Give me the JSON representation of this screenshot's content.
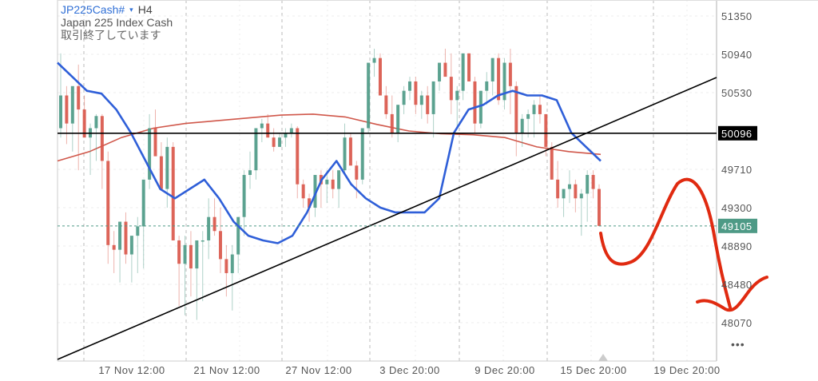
{
  "header": {
    "symbol": "JP225Cash#",
    "caret": "▾",
    "timeframe": "H4",
    "instrument_name": "Japan 225 Index Cash",
    "market_status": "取引終了しています"
  },
  "colors": {
    "bull": "#4e9a86",
    "bear": "#d9574a",
    "ma_fast": "#2f5fd8",
    "ma_slow": "#d0574a",
    "horizontal_line": "#000000",
    "trend_line": "#000000",
    "drawing": "#e02a10",
    "current_price_bg": "#4e9a86",
    "hline_label_bg": "#000000",
    "grid": "#cccccc"
  },
  "more_menu": {
    "icon": "more-horizontal-icon",
    "label": "•••"
  },
  "chart_data": {
    "type": "candlestick",
    "title": "JP225Cash# H4 - Japan 225 Index Cash",
    "xlabel": "",
    "ylabel": "",
    "ylim": [
      47700,
      51550
    ],
    "y_ticks": [
      51350,
      50940,
      50530,
      49710,
      49300,
      48890,
      48480,
      48070
    ],
    "x_ticks": [
      "17 Nov 12:00",
      "21 Nov 12:00",
      "27 Nov 12:00",
      "3 Dec 20:00",
      "9 Dec 20:00",
      "15 Dec 20:00",
      "19 Dec 20:00"
    ],
    "grid": true,
    "horizontal_line": {
      "price": 50096,
      "label": "50096"
    },
    "current_price": {
      "price": 49105,
      "label": "49105"
    },
    "series": [
      {
        "name": "Price (OHLC, approx.)",
        "type": "candlestick",
        "values": [
          [
            50150,
            50950,
            50050,
            50500
          ],
          [
            50500,
            50600,
            49980,
            50200
          ],
          [
            50200,
            50400,
            49900,
            50600
          ],
          [
            50600,
            50830,
            49700,
            50350
          ],
          [
            50350,
            50500,
            50050,
            50050
          ],
          [
            50050,
            50200,
            49650,
            50150
          ],
          [
            50150,
            50300,
            49800,
            50280
          ],
          [
            50280,
            50300,
            49500,
            49800
          ],
          [
            49800,
            49900,
            48700,
            48900
          ],
          [
            48900,
            49050,
            48600,
            48850
          ],
          [
            48850,
            49100,
            48500,
            49150
          ],
          [
            49150,
            49250,
            48700,
            48800
          ],
          [
            48800,
            48900,
            48500,
            49000
          ],
          [
            49000,
            49200,
            48600,
            49100
          ],
          [
            49100,
            49500,
            48650,
            49600
          ],
          [
            49600,
            50300,
            49500,
            50150
          ],
          [
            50150,
            50350,
            49900,
            49850
          ],
          [
            49850,
            50000,
            49600,
            49500
          ],
          [
            49500,
            50050,
            49300,
            49950
          ],
          [
            49950,
            50000,
            49100,
            48950
          ],
          [
            48950,
            49000,
            48250,
            48700
          ],
          [
            48700,
            49000,
            48150,
            48900
          ],
          [
            48900,
            49050,
            48350,
            48650
          ],
          [
            48650,
            48850,
            48100,
            48950
          ],
          [
            48950,
            49050,
            48300,
            48950
          ],
          [
            48950,
            49400,
            48750,
            49200
          ],
          [
            49200,
            49400,
            49000,
            49050
          ],
          [
            49050,
            49300,
            48600,
            48750
          ],
          [
            48750,
            48900,
            48350,
            48600
          ],
          [
            48600,
            48900,
            48200,
            48800
          ],
          [
            48800,
            49200,
            48600,
            49200
          ],
          [
            49200,
            49700,
            49000,
            49650
          ],
          [
            49650,
            49900,
            49500,
            49700
          ],
          [
            49700,
            50100,
            49600,
            50150
          ],
          [
            50150,
            50250,
            50000,
            50200
          ],
          [
            50200,
            50300,
            50050,
            50050
          ],
          [
            50050,
            50150,
            49900,
            49950
          ],
          [
            49950,
            50100,
            49950,
            50050
          ],
          [
            50050,
            50150,
            49950,
            50100
          ],
          [
            50100,
            50200,
            50050,
            50150
          ],
          [
            50150,
            50170,
            49400,
            49550
          ],
          [
            49550,
            49600,
            49300,
            49400
          ],
          [
            49400,
            49450,
            49150,
            49300
          ],
          [
            49300,
            49600,
            49200,
            49650
          ],
          [
            49650,
            49700,
            49300,
            49550
          ],
          [
            49550,
            49700,
            49350,
            49600
          ],
          [
            49600,
            49700,
            49400,
            49500
          ],
          [
            49500,
            49650,
            49300,
            49700
          ],
          [
            49700,
            50200,
            49650,
            50050
          ],
          [
            50050,
            50100,
            49800,
            49750
          ],
          [
            49750,
            49800,
            49400,
            49600
          ],
          [
            49600,
            50100,
            49550,
            50150
          ],
          [
            50150,
            50700,
            50100,
            50850
          ],
          [
            50850,
            51000,
            50700,
            50900
          ],
          [
            50900,
            50950,
            50500,
            50500
          ],
          [
            50500,
            50600,
            50250,
            50300
          ],
          [
            50300,
            50500,
            50050,
            50100
          ],
          [
            50100,
            50400,
            50000,
            50400
          ],
          [
            50400,
            50600,
            50300,
            50550
          ],
          [
            50550,
            50700,
            50450,
            50650
          ],
          [
            50650,
            50700,
            50300,
            50400
          ],
          [
            50400,
            50550,
            50250,
            50500
          ],
          [
            50500,
            50600,
            50200,
            50300
          ],
          [
            50300,
            50650,
            50050,
            50650
          ],
          [
            50650,
            50800,
            50550,
            50850
          ],
          [
            50850,
            51000,
            50750,
            50700
          ],
          [
            50700,
            50950,
            50300,
            50450
          ],
          [
            50450,
            50600,
            50150,
            50550
          ],
          [
            50550,
            50900,
            50450,
            50950
          ],
          [
            50950,
            50950,
            50650,
            50650
          ],
          [
            50650,
            50700,
            50100,
            50200
          ],
          [
            50200,
            50500,
            50150,
            50550
          ],
          [
            50550,
            50750,
            50400,
            50650
          ],
          [
            50650,
            50900,
            50500,
            50900
          ],
          [
            50900,
            50950,
            50400,
            50450
          ],
          [
            50450,
            50900,
            50350,
            50850
          ],
          [
            50850,
            51000,
            50300,
            50600
          ],
          [
            50600,
            50650,
            49850,
            50100
          ],
          [
            50100,
            50300,
            49950,
            50250
          ],
          [
            50250,
            50350,
            50050,
            50300
          ],
          [
            50300,
            50450,
            50050,
            50400
          ],
          [
            50400,
            50500,
            50200,
            50300
          ],
          [
            50300,
            50300,
            49850,
            49950
          ],
          [
            49950,
            50000,
            49600,
            49600
          ],
          [
            49600,
            49800,
            49300,
            49400
          ],
          [
            49400,
            49500,
            49200,
            49500
          ],
          [
            49500,
            49700,
            49350,
            49550
          ],
          [
            49550,
            49600,
            49250,
            49400
          ],
          [
            49400,
            49500,
            49000,
            49450
          ],
          [
            49450,
            49700,
            49150,
            49650
          ],
          [
            49650,
            49700,
            49400,
            49500
          ],
          [
            49500,
            49550,
            49100,
            49105
          ]
        ]
      },
      {
        "name": "Fast MA (blue)",
        "type": "line",
        "values": [
          50850,
          50700,
          50550,
          50520,
          50350,
          50100,
          49800,
          49500,
          49400,
          49500,
          49600,
          49400,
          49150,
          49000,
          48950,
          48920,
          49000,
          49250,
          49600,
          49800,
          49550,
          49400,
          49300,
          49250,
          49250,
          49250,
          49400,
          50100,
          50350,
          50400,
          50500,
          50550,
          50500,
          50500,
          50450,
          50100,
          49950,
          49800
        ]
      },
      {
        "name": "Slow MA (red)",
        "type": "line",
        "values": [
          49800,
          49900,
          50050,
          50150,
          50200,
          50230,
          50260,
          50290,
          50300,
          50270,
          50190,
          50120,
          50090,
          50080,
          50050,
          49950,
          49900,
          49870
        ]
      }
    ],
    "trend_line": {
      "from": {
        "x": "start",
        "price": 47480
      },
      "to": {
        "x": "right edge",
        "price": 50820
      }
    },
    "annotations": [
      {
        "type": "hand-drawn",
        "description": "Red freehand projection: drop to ~48740, rally to ~49600 near 19 Dec, then fall to ~48150, then rebound toward ~48500"
      }
    ]
  }
}
